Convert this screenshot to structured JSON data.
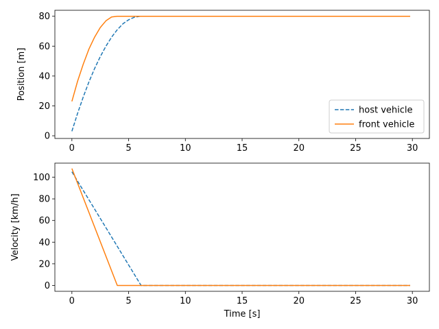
{
  "chart_data": [
    {
      "type": "line",
      "title": "",
      "xlabel": "",
      "ylabel": "Position [m]",
      "xlim": [
        -1.5,
        31.5
      ],
      "ylim": [
        -1.8,
        84.0
      ],
      "xticks": [
        0,
        5,
        10,
        15,
        20,
        25,
        30
      ],
      "yticks": [
        0,
        20,
        40,
        60,
        80
      ],
      "grid": false,
      "legend": "lower-right",
      "series": [
        {
          "name": "host vehicle",
          "color": "#1f77b4",
          "style": "dashed",
          "x": [
            0,
            0.5,
            1,
            1.5,
            2,
            2.5,
            3,
            3.5,
            4,
            4.5,
            5,
            5.5,
            6,
            7,
            10,
            15,
            20,
            25,
            29.8
          ],
          "y": [
            3,
            15,
            26,
            36,
            45,
            53,
            60,
            66,
            71,
            75,
            77.6,
            79.3,
            80,
            80,
            80,
            80,
            80,
            80,
            80
          ]
        },
        {
          "name": "front vehicle",
          "color": "#ff7f0e",
          "style": "solid",
          "x": [
            0,
            0.5,
            1,
            1.5,
            2,
            2.5,
            3,
            3.5,
            4,
            5,
            10,
            15,
            20,
            25,
            29.8
          ],
          "y": [
            23,
            36.5,
            48,
            58,
            66,
            72.5,
            77,
            79.5,
            80,
            80,
            80,
            80,
            80,
            80,
            80
          ]
        }
      ]
    },
    {
      "type": "line",
      "title": "",
      "xlabel": "Time [s]",
      "ylabel": "Velocity [km/h]",
      "xlim": [
        -1.5,
        31.5
      ],
      "ylim": [
        -5.4,
        113.0
      ],
      "xticks": [
        0,
        5,
        10,
        15,
        20,
        25,
        30
      ],
      "yticks": [
        0,
        20,
        40,
        60,
        80,
        100
      ],
      "grid": false,
      "legend": "none",
      "series": [
        {
          "name": "host vehicle",
          "color": "#1f77b4",
          "style": "dashed",
          "x": [
            0,
            6.1,
            29.8
          ],
          "y": [
            105,
            0,
            0
          ]
        },
        {
          "name": "front vehicle",
          "color": "#ff7f0e",
          "style": "solid",
          "x": [
            0,
            4,
            29.8
          ],
          "y": [
            108,
            0,
            0
          ]
        }
      ]
    }
  ]
}
